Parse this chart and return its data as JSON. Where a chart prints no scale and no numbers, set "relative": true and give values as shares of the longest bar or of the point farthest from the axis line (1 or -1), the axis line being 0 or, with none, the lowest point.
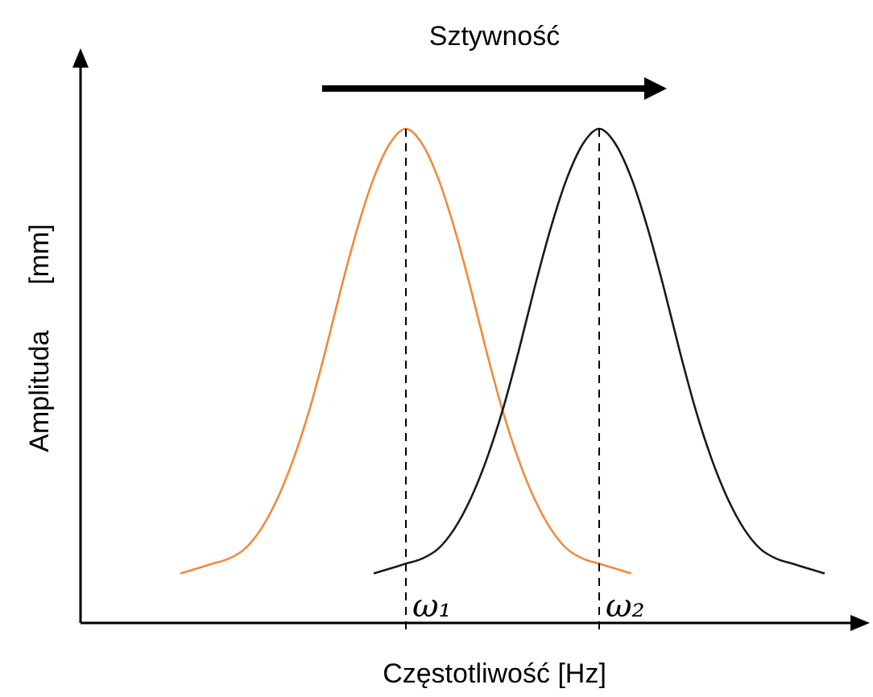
{
  "chart_data": {
    "type": "line",
    "relative": true,
    "xlabel": "Częstotliwość  [Hz]",
    "ylabel": "Amplituda      [mm]",
    "annotations": [
      "Sztywność",
      "ω₁",
      "ω₂"
    ],
    "categories": [
      null,
      null,
      null,
      null,
      null,
      null,
      null,
      null,
      null,
      null,
      null,
      null,
      null,
      null,
      null,
      null,
      null,
      null,
      null,
      null,
      null,
      null,
      null,
      null,
      null,
      null,
      null,
      null,
      null,
      null,
      null,
      null,
      null,
      null,
      null,
      null,
      null,
      null,
      null,
      null,
      null
    ],
    "series": [
      {
        "color": "#f08a3c",
        "values": [
          0.1,
          0.11,
          0.12,
          0.13,
          0.15,
          0.19,
          0.25,
          0.33,
          0.43,
          0.55,
          0.68,
          0.8,
          0.9,
          0.97,
          1,
          0.97,
          0.9,
          0.8,
          0.68,
          0.55,
          0.43,
          0.33,
          0.25,
          0.19,
          0.15,
          0.13,
          0.12,
          0.11,
          0.1,
          null,
          null,
          null,
          null,
          null,
          null,
          null,
          null,
          null,
          null,
          null,
          null
        ]
      },
      {
        "color": "#1a1a1a",
        "values": [
          null,
          null,
          null,
          null,
          null,
          null,
          null,
          null,
          null,
          null,
          null,
          null,
          0.1,
          0.11,
          0.12,
          0.13,
          0.15,
          0.19,
          0.25,
          0.33,
          0.43,
          0.55,
          0.68,
          0.8,
          0.9,
          0.97,
          1,
          0.97,
          0.9,
          0.8,
          0.68,
          0.55,
          0.43,
          0.33,
          0.25,
          0.19,
          0.15,
          0.13,
          0.12,
          0.11,
          0.1
        ]
      }
    ],
    "marker": "none",
    "line_style": "solid"
  }
}
